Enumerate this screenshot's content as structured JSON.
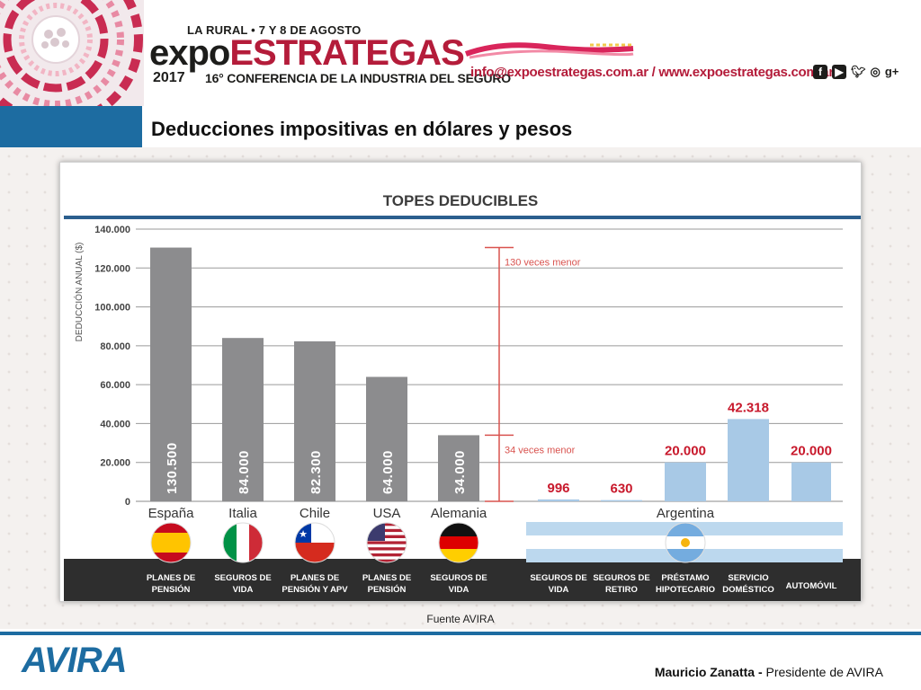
{
  "header": {
    "event_info": "LA RURAL • 7 Y 8 DE AGOSTO",
    "logo_expo": "expo",
    "logo_estrategas": "ESTRATEGAS",
    "year": "2017",
    "subtitle": "16° CONFERENCIA DE LA INDUSTRIA DEL SEGURO",
    "contact": "info@expoestrategas.com.ar / www.expoestrategas.com.ar",
    "social_icons": [
      "facebook-icon",
      "youtube-icon",
      "twitter-icon",
      "instagram-icon",
      "google-plus-icon"
    ],
    "google_plus_label": "g+",
    "accent_color": "#b41c3a"
  },
  "slide": {
    "title": "Deducciones impositivas en dólares y pesos",
    "source": "Fuente AVIRA"
  },
  "footer": {
    "logo": "AVIRA",
    "presenter_name": "Mauricio Zanatta -",
    "presenter_role": " Presidente de AVIRA",
    "brand_color": "#1d6ca1"
  },
  "chart_data": {
    "type": "bar",
    "title": "TOPES DEDUCIBLES",
    "ylabel": "DEDUCCIÓN ANUAL ($)",
    "ylim": [
      0,
      140000
    ],
    "yticks": [
      "0",
      "20.000",
      "40.000",
      "60.000",
      "80.000",
      "100.000",
      "120.000",
      "140.000"
    ],
    "bars": [
      {
        "country": "España",
        "category": "PLANES DE PENSIÓN",
        "value": 130500,
        "label": "130.500",
        "group": "intl"
      },
      {
        "country": "Italia",
        "category": "SEGUROS DE VIDA",
        "value": 84000,
        "label": "84.000",
        "group": "intl"
      },
      {
        "country": "Chile",
        "category": "PLANES DE PENSIÓN Y APV",
        "value": 82300,
        "label": "82.300",
        "group": "intl"
      },
      {
        "country": "USA",
        "category": "PLANES DE PENSIÓN",
        "value": 64000,
        "label": "64.000",
        "group": "intl"
      },
      {
        "country": "Alemania",
        "category": "SEGUROS DE VIDA",
        "value": 34000,
        "label": "34.000",
        "group": "intl"
      },
      {
        "country": "Argentina",
        "category": "SEGUROS DE VIDA",
        "value": 996,
        "label": "996",
        "group": "arg"
      },
      {
        "country": "Argentina",
        "category": "SEGUROS DE RETIRO",
        "value": 630,
        "label": "630",
        "group": "arg"
      },
      {
        "country": "Argentina",
        "category": "PRÉSTAMO HIPOTECARIO",
        "value": 20000,
        "label": "20.000",
        "group": "arg"
      },
      {
        "country": "Argentina",
        "category": "SERVICIO DOMÉSTICO",
        "value": 42318,
        "label": "42.318",
        "group": "arg"
      },
      {
        "country": "Argentina",
        "category": "AUTOMÓVIL",
        "value": 20000,
        "label": "20.000",
        "group": "arg"
      }
    ],
    "country_labels": [
      "España",
      "Italia",
      "Chile",
      "USA",
      "Alemania",
      "Argentina"
    ],
    "annotations": [
      {
        "text": "130 veces menor",
        "from": 130500,
        "to": 996
      },
      {
        "text": "34 veces menor",
        "from": 34000,
        "to": 996
      }
    ],
    "colors": {
      "intl": "#8c8c8e",
      "arg": "#a8c9e6",
      "arg_label": "#c8192c",
      "annotation": "#d9534f",
      "title_rule": "#2b5f8e",
      "category_band": "#2e2e2e"
    },
    "grid": true
  }
}
